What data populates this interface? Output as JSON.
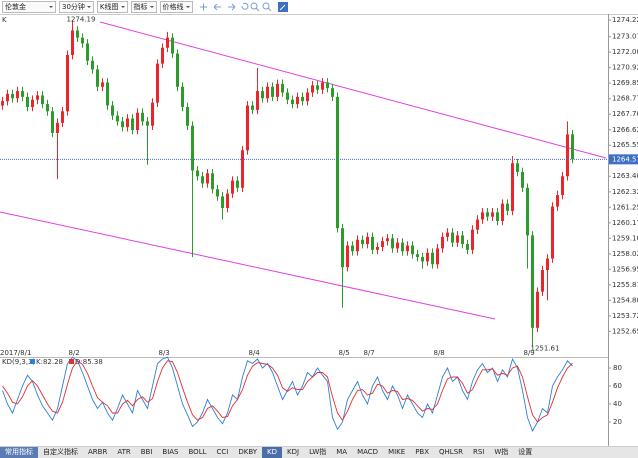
{
  "toolbar": {
    "symbol": "伦敦金",
    "period": "30分钟",
    "chart_type": "K线图",
    "indicator": "指标",
    "price_line": "价格线"
  },
  "panel_label": "K",
  "chart_data": [
    {
      "type": "candlestick",
      "categories": [
        "2017/8/1",
        null,
        null,
        null,
        null,
        null,
        null,
        null,
        null,
        null,
        null,
        null,
        null,
        null,
        "8/2",
        null,
        null,
        null,
        null,
        null,
        null,
        null,
        null,
        null,
        null,
        null,
        null,
        null,
        null,
        null,
        null,
        null,
        "8/3",
        null,
        null,
        null,
        null,
        null,
        null,
        null,
        null,
        null,
        null,
        null,
        null,
        null,
        null,
        null,
        null,
        null,
        "8/4",
        null,
        null,
        null,
        null,
        null,
        null,
        null,
        null,
        null,
        null,
        null,
        null,
        null,
        null,
        null,
        null,
        null,
        "8/5",
        null,
        null,
        null,
        null,
        "8/7",
        null,
        null,
        null,
        null,
        null,
        null,
        null,
        null,
        null,
        null,
        null,
        null,
        null,
        "8/8",
        null,
        null,
        null,
        null,
        null,
        null,
        null,
        null,
        null,
        null,
        null,
        null,
        null,
        null,
        null,
        null,
        null,
        "8/9",
        null,
        null,
        null,
        null,
        null,
        null,
        null,
        null,
        null
      ],
      "open": [
        1268.3,
        1268.6,
        1269.1,
        1268.8,
        1269.3,
        1268.9,
        1268.2,
        1268.7,
        1269.0,
        1268.4,
        1267.9,
        1266.4,
        1267.1,
        1267.9,
        1271.8,
        1273.5,
        1273.0,
        1272.6,
        1271.4,
        1270.8,
        1269.6,
        1269.9,
        1268.3,
        1267.6,
        1267.2,
        1266.8,
        1267.4,
        1266.6,
        1267.8,
        1267.2,
        1266.9,
        1268.5,
        1271.2,
        1272.3,
        1273.0,
        1271.9,
        1269.6,
        1268.2,
        1266.9,
        1263.8,
        1263.4,
        1262.9,
        1263.6,
        1262.5,
        1262.0,
        1261.2,
        1262.2,
        1263.1,
        1262.6,
        1265.2,
        1268.3,
        1268.0,
        1269.3,
        1268.8,
        1269.6,
        1268.9,
        1269.8,
        1269.2,
        1268.7,
        1268.4,
        1268.9,
        1268.6,
        1269.2,
        1269.7,
        1269.4,
        1269.9,
        1269.5,
        1268.9,
        1259.8,
        1257.1,
        1258.6,
        1258.2,
        1259.0,
        1258.7,
        1259.2,
        1258.3,
        1258.5,
        1258.9,
        1259.1,
        1258.4,
        1258.8,
        1258.2,
        1258.6,
        1258.0,
        1257.8,
        1257.5,
        1258.1,
        1257.3,
        1258.4,
        1259.2,
        1259.5,
        1258.8,
        1259.3,
        1258.7,
        1258.3,
        1259.7,
        1260.4,
        1260.9,
        1260.6,
        1260.9,
        1260.3,
        1261.5,
        1261.0,
        1264.3,
        1263.7,
        1262.6,
        1259.3,
        1252.9,
        1255.4,
        1256.9,
        1257.7,
        1261.3,
        1262.1,
        1263.4,
        1266.3
      ],
      "high": [
        1268.9,
        1269.4,
        1269.4,
        1269.6,
        1269.6,
        1269.2,
        1269.0,
        1269.3,
        1269.3,
        1268.7,
        1268.2,
        1267.4,
        1268.2,
        1272.1,
        1274.19,
        1273.8,
        1273.3,
        1272.9,
        1271.7,
        1271.1,
        1270.2,
        1270.2,
        1268.6,
        1267.9,
        1267.5,
        1267.7,
        1267.7,
        1268.1,
        1268.1,
        1267.5,
        1268.8,
        1271.5,
        1272.6,
        1273.4,
        1273.3,
        1272.2,
        1269.9,
        1268.5,
        1267.2,
        1264.1,
        1263.7,
        1263.9,
        1263.9,
        1262.8,
        1262.3,
        1262.5,
        1263.4,
        1263.4,
        1265.5,
        1268.6,
        1268.6,
        1270.9,
        1269.6,
        1269.9,
        1269.9,
        1270.1,
        1270.1,
        1269.5,
        1269.0,
        1269.2,
        1269.2,
        1269.5,
        1270.0,
        1270.0,
        1270.2,
        1270.2,
        1269.8,
        1269.2,
        1260.1,
        1258.9,
        1258.9,
        1259.3,
        1259.3,
        1259.5,
        1259.5,
        1258.8,
        1259.2,
        1259.4,
        1259.4,
        1259.1,
        1259.1,
        1258.9,
        1258.9,
        1258.3,
        1258.1,
        1258.4,
        1258.4,
        1258.7,
        1259.5,
        1259.8,
        1259.8,
        1259.6,
        1259.6,
        1259.0,
        1260.0,
        1260.7,
        1261.2,
        1261.2,
        1261.2,
        1261.2,
        1261.8,
        1261.8,
        1264.8,
        1264.6,
        1264.0,
        1262.9,
        1259.6,
        1255.7,
        1257.2,
        1258.0,
        1261.6,
        1262.4,
        1263.7,
        1267.2,
        1266.6
      ],
      "low": [
        1268.0,
        1268.3,
        1268.5,
        1268.5,
        1268.6,
        1267.9,
        1267.9,
        1268.4,
        1268.1,
        1267.6,
        1266.1,
        1263.2,
        1266.8,
        1267.6,
        1271.5,
        1272.7,
        1272.3,
        1271.1,
        1270.5,
        1269.3,
        1269.3,
        1268.0,
        1267.3,
        1266.9,
        1266.5,
        1266.5,
        1266.3,
        1266.3,
        1266.9,
        1264.2,
        1266.6,
        1268.2,
        1270.9,
        1272.0,
        1271.6,
        1269.3,
        1267.9,
        1266.6,
        1257.8,
        1263.1,
        1262.6,
        1262.6,
        1262.2,
        1261.7,
        1260.4,
        1260.9,
        1261.9,
        1262.3,
        1262.3,
        1264.9,
        1267.7,
        1267.7,
        1268.5,
        1268.5,
        1268.6,
        1268.6,
        1268.9,
        1268.4,
        1268.1,
        1268.1,
        1268.3,
        1268.3,
        1268.9,
        1269.1,
        1269.1,
        1269.2,
        1268.6,
        1259.5,
        1254.3,
        1256.8,
        1257.9,
        1257.9,
        1258.4,
        1258.4,
        1258.0,
        1258.0,
        1258.2,
        1258.6,
        1258.1,
        1258.1,
        1257.9,
        1257.9,
        1257.7,
        1257.5,
        1257.0,
        1257.2,
        1257.0,
        1257.0,
        1258.1,
        1258.9,
        1258.5,
        1258.5,
        1258.4,
        1258.0,
        1258.0,
        1259.4,
        1260.1,
        1260.3,
        1260.3,
        1260.0,
        1260.0,
        1260.7,
        1260.7,
        1263.4,
        1262.3,
        1257.0,
        1251.61,
        1252.6,
        1255.1,
        1254.8,
        1257.4,
        1261.0,
        1261.8,
        1263.1,
        1264.3
      ],
      "close": [
        1268.6,
        1269.1,
        1268.8,
        1269.3,
        1268.9,
        1268.2,
        1268.7,
        1269.0,
        1268.4,
        1267.9,
        1266.4,
        1267.1,
        1267.9,
        1271.8,
        1273.5,
        1273.0,
        1272.6,
        1271.4,
        1270.8,
        1269.6,
        1269.9,
        1268.3,
        1267.6,
        1267.2,
        1266.8,
        1267.4,
        1266.6,
        1267.8,
        1267.2,
        1266.9,
        1268.5,
        1271.2,
        1272.3,
        1273.0,
        1271.9,
        1269.6,
        1268.2,
        1266.9,
        1263.8,
        1263.4,
        1262.9,
        1263.6,
        1262.5,
        1262.0,
        1261.2,
        1262.2,
        1263.1,
        1262.6,
        1265.2,
        1268.3,
        1268.0,
        1269.3,
        1268.8,
        1269.6,
        1268.9,
        1269.8,
        1269.2,
        1268.7,
        1268.4,
        1268.9,
        1268.6,
        1269.2,
        1269.7,
        1269.4,
        1269.9,
        1269.5,
        1268.9,
        1259.8,
        1257.1,
        1258.6,
        1258.2,
        1259.0,
        1258.7,
        1259.2,
        1258.3,
        1258.5,
        1258.9,
        1259.1,
        1258.4,
        1258.8,
        1258.2,
        1258.6,
        1258.0,
        1257.8,
        1257.5,
        1258.1,
        1257.3,
        1258.4,
        1259.2,
        1259.5,
        1258.8,
        1259.3,
        1258.7,
        1258.3,
        1259.7,
        1260.4,
        1260.9,
        1260.6,
        1260.9,
        1260.3,
        1261.5,
        1261.0,
        1264.3,
        1263.7,
        1262.6,
        1259.3,
        1252.9,
        1255.4,
        1256.9,
        1257.7,
        1261.3,
        1262.1,
        1263.4,
        1266.3,
        1264.57
      ],
      "up_color": "#e8262b",
      "down_color": "#2c9b2c",
      "ylim": [
        1251.5,
        1274.64
      ],
      "yticks": [
        1274.22,
        1273.07,
        {
          "value": 1272,
          "label": "1272.00"
        },
        1270.92,
        1269.85,
        1268.77,
        {
          "value": 1267.7,
          "label": "1267.70"
        },
        1266.62,
        1265.55,
        {
          "value": 1263.4,
          "label": "1263.40"
        },
        1262.32,
        1261.25,
        1260.17,
        {
          "value": 1259.1,
          "label": "1259.10"
        },
        1258.02,
        1256.95,
        1255.87,
        {
          "value": 1254.8,
          "label": "1254.80"
        },
        1253.72,
        1252.65
      ],
      "last_price": 1264.57,
      "last_price_color": "#3d6fc4"
    },
    {
      "type": "line",
      "title": "KD(9,3,3)",
      "series": [
        {
          "name": "K:82.28",
          "color": "#2f7fd8",
          "values": [
            55,
            40,
            30,
            45,
            60,
            72,
            65,
            50,
            38,
            30,
            22,
            35,
            60,
            85,
            92,
            88,
            75,
            60,
            45,
            35,
            42,
            30,
            22,
            35,
            50,
            40,
            30,
            55,
            45,
            35,
            60,
            85,
            90,
            92,
            80,
            60,
            40,
            28,
            15,
            20,
            30,
            45,
            35,
            25,
            18,
            30,
            50,
            45,
            70,
            88,
            85,
            90,
            80,
            85,
            75,
            60,
            45,
            55,
            65,
            50,
            60,
            75,
            70,
            80,
            72,
            65,
            25,
            12,
            20,
            45,
            55,
            65,
            50,
            40,
            60,
            70,
            55,
            45,
            60,
            50,
            35,
            50,
            40,
            30,
            25,
            40,
            30,
            50,
            70,
            80,
            65,
            70,
            55,
            45,
            65,
            78,
            85,
            75,
            80,
            65,
            78,
            70,
            90,
            80,
            55,
            25,
            10,
            20,
            35,
            30,
            60,
            70,
            78,
            88,
            82.28
          ]
        },
        {
          "name": "D:85.38",
          "color": "#e03030",
          "values": [
            60,
            52,
            42,
            40,
            48,
            60,
            66,
            60,
            50,
            40,
            32,
            30,
            42,
            62,
            80,
            88,
            84,
            74,
            60,
            47,
            42,
            38,
            30,
            30,
            40,
            44,
            38,
            45,
            48,
            42,
            46,
            65,
            80,
            88,
            87,
            75,
            58,
            42,
            28,
            22,
            25,
            35,
            38,
            32,
            25,
            26,
            38,
            45,
            56,
            72,
            82,
            86,
            85,
            84,
            80,
            72,
            58,
            54,
            58,
            56,
            56,
            65,
            70,
            75,
            75,
            70,
            48,
            30,
            22,
            32,
            45,
            55,
            56,
            50,
            52,
            62,
            60,
            52,
            55,
            54,
            45,
            46,
            44,
            38,
            32,
            35,
            34,
            40,
            55,
            68,
            70,
            70,
            63,
            52,
            56,
            68,
            78,
            78,
            79,
            72,
            74,
            72,
            80,
            82,
            70,
            48,
            28,
            20,
            25,
            28,
            42,
            58,
            70,
            80,
            85.38
          ]
        }
      ],
      "ylim": [
        0,
        100
      ],
      "yticks": [
        80,
        60,
        40,
        20
      ]
    }
  ],
  "tabs": [
    "常用指标",
    "自定义指标",
    "ARBR",
    "ATR",
    "BBI",
    "BIAS",
    "BOLL",
    "CCI",
    "DKBY",
    "KD",
    "KDJ",
    "LW指",
    "MA",
    "MACD",
    "MIKE",
    "PBX",
    "QHLSR",
    "RSI",
    "W指",
    "设置"
  ],
  "active_tab": 9
}
